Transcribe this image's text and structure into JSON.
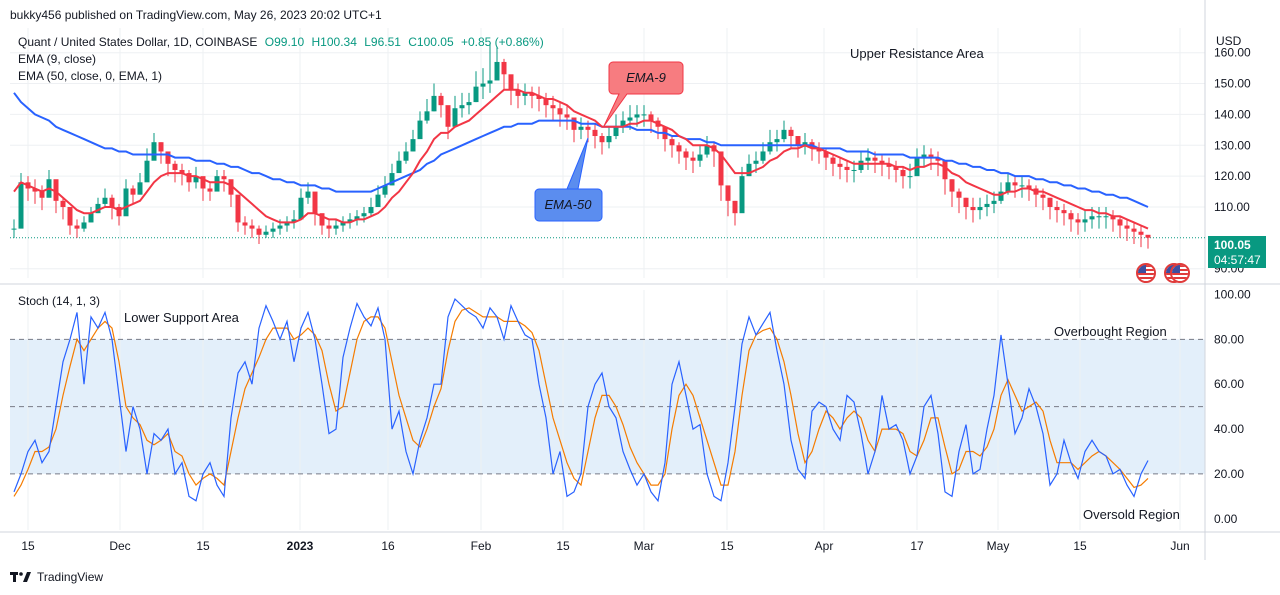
{
  "header": {
    "publisher": "bukky456 published on TradingView.com, May 26, 2023 20:02 UTC+1"
  },
  "legend": {
    "symbol": "Quant / United States Dollar, 1D, COINBASE",
    "open": "O99.10",
    "high": "H100.34",
    "low": "L96.51",
    "close": "C100.05",
    "change": "+0.85 (+0.86%)",
    "ema9": "EMA (9, close)",
    "ema50": "EMA (50, close, 0, EMA, 1)",
    "stoch": "Stoch (14, 1, 3)"
  },
  "price_label": {
    "value": "100.05",
    "countdown": "04:57:47",
    "color": "#089981"
  },
  "footer": {
    "brand": "TradingView"
  },
  "colors": {
    "up": "#089981",
    "down": "#f23645",
    "ema9": "#f23645",
    "ema50": "#2962ff",
    "stoch_k": "#2962ff",
    "stoch_d": "#f57c00",
    "band": "#e3effa"
  },
  "chart_data": [
    {
      "type": "candlestick",
      "title": "Quant / United States Dollar, 1D, COINBASE",
      "ylabel": "USD",
      "ylim": [
        87,
        168
      ],
      "ytick_labels": [
        "90.00",
        "110.00",
        "120.00",
        "130.00",
        "140.00",
        "150.00",
        "160.00"
      ],
      "xtick_labels": [
        "15",
        "Dec",
        "15",
        "2023",
        "16",
        "Feb",
        "15",
        "Mar",
        "15",
        "Apr",
        "17",
        "May",
        "15",
        "Jun"
      ],
      "annotations": [
        "Upper Resistance Area",
        "EMA-9",
        "EMA-50"
      ],
      "last_price": 100.05,
      "closes": [
        103,
        118,
        116,
        115,
        113,
        119,
        112,
        110,
        104,
        103,
        105,
        108,
        111,
        113,
        110,
        107,
        116,
        114,
        118,
        125,
        131,
        128,
        124,
        122,
        121,
        118,
        120,
        116,
        115,
        120,
        119,
        114,
        105,
        104,
        103,
        101,
        102,
        103,
        104,
        105,
        106,
        113,
        115,
        108,
        104,
        103,
        104,
        105,
        106,
        107,
        108,
        110,
        114,
        117,
        121,
        125,
        128,
        132,
        138,
        141,
        146,
        143,
        136,
        142,
        143,
        144,
        149,
        150,
        151,
        157,
        153,
        148,
        146,
        147,
        146,
        145,
        143,
        142,
        140,
        139,
        135,
        136,
        135,
        133,
        131,
        133,
        136,
        138,
        139,
        140,
        140,
        138,
        136,
        132,
        130,
        128,
        126,
        125,
        127,
        130,
        128,
        117,
        112,
        108,
        120,
        124,
        125,
        128,
        131,
        132,
        135,
        133,
        130,
        131,
        129,
        128,
        126,
        124,
        123,
        122,
        122,
        125,
        126,
        125,
        124,
        123,
        122,
        120,
        120,
        126,
        127,
        126,
        125,
        119,
        115,
        113,
        110,
        109,
        110,
        111,
        112,
        115,
        118,
        117,
        117,
        116,
        114,
        113,
        110,
        109,
        108,
        106,
        105,
        106,
        107,
        107,
        107,
        106,
        104,
        103,
        102,
        101,
        100.05
      ],
      "highs": [
        106,
        121,
        120,
        119,
        117,
        122,
        115,
        113,
        108,
        106,
        107,
        110,
        113,
        116,
        114,
        111,
        119,
        117,
        121,
        129,
        134,
        131,
        127,
        125,
        124,
        122,
        123,
        119,
        118,
        122,
        122,
        117,
        108,
        107,
        106,
        104,
        104,
        105,
        106,
        107,
        109,
        116,
        118,
        111,
        107,
        106,
        106,
        107,
        108,
        109,
        110,
        113,
        117,
        120,
        124,
        128,
        131,
        135,
        141,
        145,
        150,
        147,
        140,
        146,
        147,
        147,
        154,
        155,
        163,
        162,
        158,
        152,
        150,
        150,
        149,
        149,
        147,
        146,
        144,
        143,
        139,
        139,
        138,
        137,
        134,
        136,
        140,
        141,
        143,
        143,
        143,
        141,
        139,
        135,
        133,
        131,
        129,
        128,
        130,
        133,
        131,
        122,
        116,
        112,
        123,
        127,
        128,
        131,
        135,
        135,
        138,
        136,
        133,
        134,
        132,
        131,
        129,
        127,
        126,
        125,
        125,
        128,
        129,
        128,
        127,
        126,
        125,
        123,
        124,
        129,
        130,
        129,
        128,
        123,
        119,
        116,
        113,
        113,
        113,
        114,
        115,
        118,
        121,
        120,
        120,
        119,
        117,
        116,
        113,
        112,
        111,
        109,
        108,
        109,
        110,
        110,
        110,
        109,
        107,
        106,
        105,
        104,
        100.34
      ],
      "lows": [
        100,
        112,
        112,
        111,
        109,
        114,
        108,
        106,
        101,
        100,
        102,
        105,
        108,
        110,
        106,
        104,
        112,
        111,
        114,
        121,
        127,
        124,
        120,
        118,
        117,
        115,
        116,
        112,
        112,
        116,
        115,
        110,
        102,
        101,
        100,
        98,
        100,
        100,
        101,
        102,
        103,
        109,
        111,
        104,
        101,
        100,
        101,
        102,
        103,
        104,
        105,
        107,
        111,
        113,
        117,
        121,
        124,
        128,
        134,
        137,
        141,
        139,
        132,
        138,
        139,
        140,
        144,
        145,
        147,
        152,
        148,
        143,
        142,
        143,
        142,
        141,
        139,
        138,
        136,
        135,
        131,
        132,
        131,
        129,
        127,
        129,
        132,
        134,
        135,
        136,
        136,
        134,
        132,
        128,
        126,
        124,
        122,
        121,
        123,
        126,
        123,
        112,
        107,
        104,
        114,
        120,
        121,
        124,
        127,
        128,
        131,
        129,
        126,
        127,
        125,
        124,
        122,
        120,
        119,
        118,
        118,
        121,
        122,
        121,
        120,
        119,
        118,
        116,
        116,
        122,
        123,
        122,
        120,
        114,
        110,
        108,
        106,
        105,
        106,
        107,
        108,
        111,
        114,
        113,
        113,
        112,
        110,
        109,
        106,
        105,
        104,
        102,
        101,
        102,
        103,
        103,
        103,
        102,
        100,
        99,
        98,
        97,
        96.51
      ],
      "series": [
        {
          "name": "EMA (9, close)",
          "values": [
            115,
            118,
            117,
            116,
            115,
            116,
            115,
            113,
            111,
            109,
            108,
            108,
            109,
            110,
            110,
            109,
            110,
            111,
            112,
            115,
            118,
            120,
            121,
            121,
            121,
            120,
            120,
            119,
            118,
            118,
            118,
            117,
            115,
            113,
            111,
            109,
            107,
            106,
            105,
            105,
            105,
            106,
            108,
            108,
            107,
            106,
            106,
            105,
            105,
            106,
            106,
            107,
            108,
            110,
            113,
            115,
            118,
            121,
            125,
            128,
            132,
            134,
            134,
            136,
            137,
            138,
            140,
            142,
            144,
            146,
            148,
            148,
            148,
            147,
            147,
            146,
            145,
            145,
            144,
            143,
            141,
            140,
            139,
            138,
            136,
            136,
            136,
            136,
            137,
            137,
            138,
            138,
            137,
            136,
            135,
            133,
            132,
            130,
            130,
            130,
            129,
            127,
            124,
            121,
            121,
            121,
            122,
            123,
            125,
            126,
            128,
            129,
            129,
            130,
            129,
            129,
            128,
            127,
            126,
            125,
            124,
            124,
            124,
            124,
            124,
            124,
            123,
            123,
            122,
            123,
            123,
            124,
            124,
            123,
            121,
            120,
            118,
            117,
            116,
            115,
            114,
            114,
            115,
            115,
            116,
            116,
            115,
            115,
            114,
            113,
            112,
            111,
            110,
            109,
            109,
            108,
            108,
            107,
            107,
            106,
            105,
            104,
            103
          ]
        },
        {
          "name": "EMA (50, close, 0, EMA, 1)",
          "values": [
            147,
            144,
            142,
            140,
            139,
            138,
            136,
            135,
            134,
            133,
            132,
            131,
            130,
            129,
            129,
            128,
            128,
            127,
            127,
            127,
            127,
            127,
            127,
            126,
            126,
            126,
            125,
            125,
            125,
            124,
            124,
            123,
            123,
            122,
            121,
            121,
            120,
            119,
            119,
            118,
            118,
            117,
            117,
            117,
            116,
            116,
            115,
            115,
            115,
            115,
            115,
            115,
            116,
            117,
            118,
            119,
            120,
            121,
            122,
            124,
            125,
            127,
            128,
            129,
            130,
            131,
            132,
            133,
            134,
            135,
            136,
            136,
            137,
            137,
            137,
            138,
            138,
            138,
            138,
            138,
            138,
            137,
            137,
            137,
            136,
            136,
            136,
            136,
            136,
            135,
            135,
            135,
            134,
            134,
            133,
            133,
            132,
            132,
            132,
            131,
            131,
            130,
            130,
            130,
            130,
            130,
            130,
            130,
            130,
            130,
            130,
            130,
            130,
            130,
            130,
            129,
            129,
            129,
            129,
            128,
            128,
            128,
            128,
            127,
            127,
            127,
            127,
            127,
            126,
            126,
            126,
            126,
            126,
            125,
            125,
            124,
            124,
            123,
            123,
            122,
            122,
            121,
            121,
            120,
            120,
            120,
            119,
            119,
            118,
            118,
            117,
            117,
            116,
            116,
            115,
            115,
            114,
            114,
            113,
            113,
            112,
            111,
            110
          ]
        }
      ]
    },
    {
      "type": "line",
      "title": "Stoch (14, 1, 3)",
      "ylim": [
        -5,
        102
      ],
      "ytick_labels": [
        "0.00",
        "20.00",
        "40.00",
        "60.00",
        "80.00",
        "100.00"
      ],
      "annotations": [
        "Lower Support Area",
        "Overbought Region",
        "Oversold Region"
      ],
      "levels": [
        20,
        50,
        80
      ],
      "series": [
        {
          "name": "%K",
          "values": [
            12,
            20,
            30,
            35,
            25,
            30,
            50,
            70,
            80,
            92,
            60,
            90,
            85,
            92,
            80,
            55,
            30,
            50,
            40,
            20,
            38,
            35,
            40,
            20,
            25,
            10,
            8,
            20,
            25,
            15,
            10,
            45,
            65,
            70,
            60,
            85,
            95,
            88,
            80,
            88,
            70,
            85,
            92,
            80,
            60,
            38,
            40,
            72,
            85,
            96,
            90,
            86,
            94,
            80,
            40,
            48,
            30,
            20,
            35,
            45,
            60,
            60,
            90,
            98,
            95,
            92,
            90,
            85,
            94,
            90,
            80,
            95,
            88,
            82,
            80,
            60,
            45,
            20,
            30,
            10,
            12,
            20,
            50,
            60,
            65,
            50,
            45,
            30,
            22,
            15,
            20,
            12,
            8,
            25,
            60,
            70,
            55,
            40,
            42,
            20,
            10,
            8,
            25,
            50,
            78,
            90,
            82,
            87,
            92,
            75,
            60,
            35,
            22,
            18,
            48,
            52,
            50,
            40,
            35,
            55,
            52,
            38,
            20,
            30,
            55,
            40,
            42,
            35,
            20,
            28,
            50,
            55,
            38,
            12,
            10,
            30,
            42,
            20,
            22,
            40,
            55,
            82,
            60,
            38,
            45,
            58,
            50,
            38,
            15,
            20,
            35,
            25,
            18,
            30,
            35,
            30,
            28,
            20,
            22,
            15,
            10,
            20,
            26
          ]
        },
        {
          "name": "%D",
          "values": [
            10,
            15,
            22,
            30,
            30,
            32,
            40,
            55,
            68,
            80,
            75,
            80,
            85,
            88,
            85,
            70,
            50,
            45,
            42,
            35,
            33,
            35,
            38,
            30,
            28,
            20,
            15,
            18,
            20,
            18,
            15,
            30,
            45,
            58,
            65,
            72,
            80,
            85,
            85,
            85,
            80,
            82,
            85,
            82,
            75,
            60,
            48,
            50,
            65,
            80,
            88,
            90,
            90,
            85,
            70,
            55,
            45,
            35,
            32,
            40,
            50,
            58,
            75,
            88,
            93,
            94,
            92,
            90,
            90,
            90,
            88,
            88,
            88,
            86,
            83,
            75,
            60,
            45,
            35,
            25,
            18,
            15,
            30,
            45,
            55,
            55,
            50,
            42,
            32,
            25,
            20,
            15,
            15,
            20,
            40,
            55,
            60,
            55,
            45,
            35,
            25,
            15,
            15,
            30,
            55,
            75,
            82,
            84,
            85,
            80,
            70,
            55,
            38,
            25,
            30,
            40,
            48,
            45,
            40,
            45,
            48,
            45,
            35,
            30,
            40,
            40,
            40,
            38,
            30,
            28,
            35,
            45,
            45,
            32,
            20,
            22,
            30,
            30,
            28,
            32,
            40,
            55,
            62,
            55,
            48,
            50,
            52,
            48,
            35,
            25,
            25,
            25,
            22,
            25,
            28,
            30,
            28,
            25,
            22,
            18,
            14,
            15,
            18
          ]
        }
      ]
    }
  ]
}
